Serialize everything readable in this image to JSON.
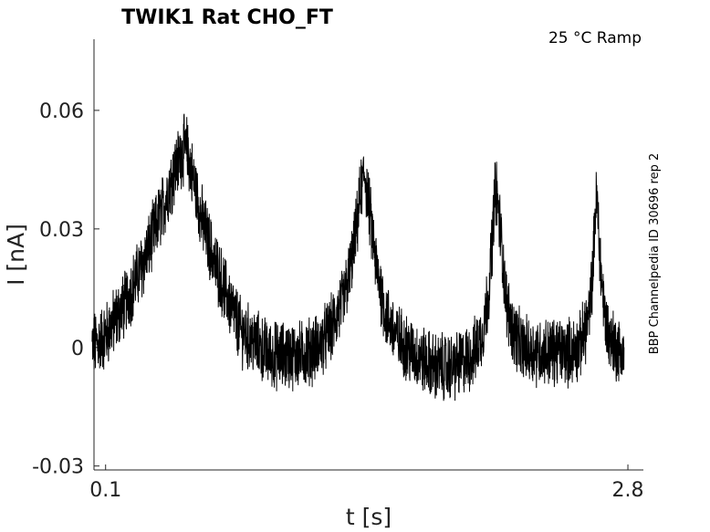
{
  "chart_data": {
    "type": "line",
    "title": "TWIK1  Rat  CHO_FT",
    "condition": "25 °C  Ramp",
    "side_label": "BBP Channelpedia ID 30696 rep 2",
    "xlabel": "t [s]",
    "ylabel": "I [nA]",
    "xlim": [
      0.04,
      2.88
    ],
    "ylim": [
      -0.031,
      0.078
    ],
    "x_ticks": [
      0.1,
      2.8
    ],
    "x_tick_labels": [
      "0.1",
      "2.8"
    ],
    "y_ticks": [
      -0.03,
      0,
      0.03,
      0.06
    ],
    "y_tick_labels": [
      "-0.03",
      "0",
      "0.03",
      "0.06"
    ],
    "grid": false,
    "legend": "none",
    "line_color": "#000000",
    "series": [
      {
        "noise_amplitude": 0.0075,
        "x": [
          0.03,
          0.1,
          0.2,
          0.3,
          0.4,
          0.45,
          0.5,
          0.52,
          0.56,
          0.6,
          0.66,
          0.72,
          0.8,
          0.9,
          0.95,
          1.0,
          1.1,
          1.2,
          1.27,
          1.33,
          1.37,
          1.4,
          1.42,
          1.44,
          1.46,
          1.5,
          1.55,
          1.6,
          1.7,
          1.8,
          1.9,
          2.0,
          2.05,
          2.08,
          2.1,
          2.11,
          2.12,
          2.14,
          2.17,
          2.2,
          2.25,
          2.3,
          2.4,
          2.5,
          2.55,
          2.6,
          2.62,
          2.63,
          2.64,
          2.66,
          2.68,
          2.7,
          2.74,
          2.78
        ],
        "y": [
          0.0,
          0.003,
          0.011,
          0.022,
          0.036,
          0.044,
          0.05,
          0.05,
          0.041,
          0.032,
          0.022,
          0.014,
          0.004,
          0.0,
          -0.002,
          -0.002,
          -0.002,
          0.0,
          0.005,
          0.012,
          0.021,
          0.031,
          0.04,
          0.044,
          0.036,
          0.02,
          0.008,
          0.003,
          -0.002,
          -0.005,
          -0.005,
          -0.002,
          0.004,
          0.014,
          0.028,
          0.038,
          0.04,
          0.03,
          0.012,
          0.005,
          0.0,
          -0.001,
          -0.001,
          -0.001,
          0.0,
          0.008,
          0.02,
          0.034,
          0.038,
          0.02,
          0.008,
          0.003,
          0.0,
          -0.002
        ]
      }
    ]
  }
}
